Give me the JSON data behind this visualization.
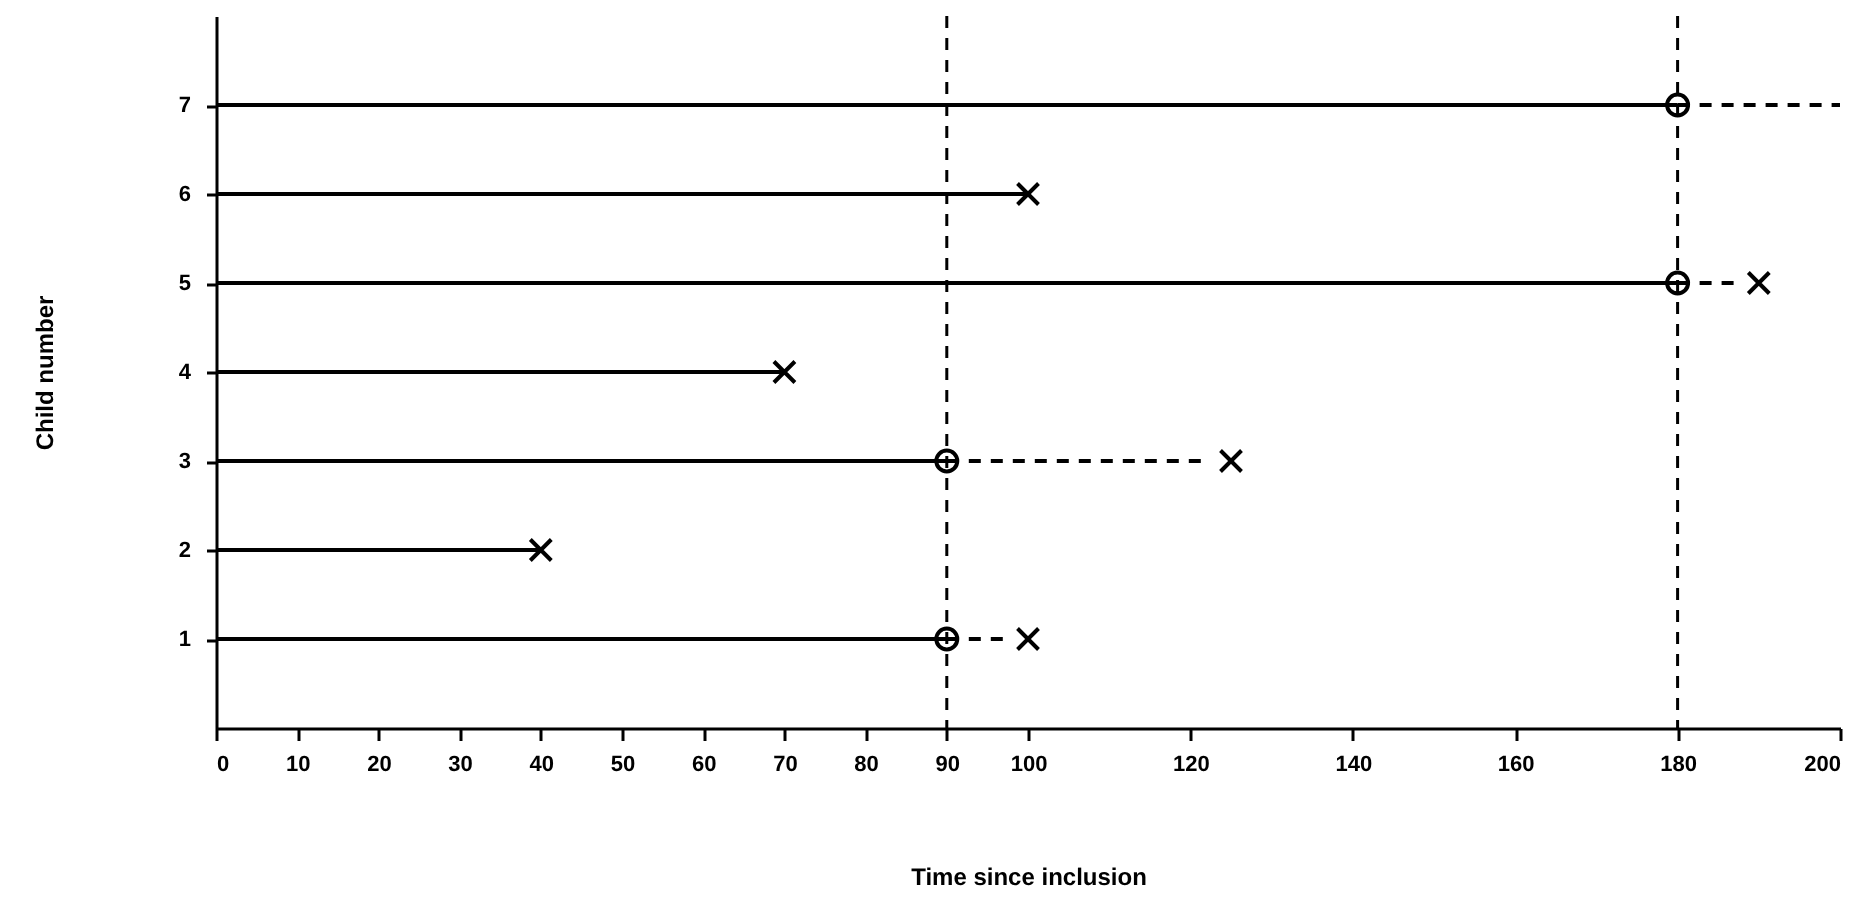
{
  "chart_data": {
    "type": "line",
    "xlabel": "Time since inclusion",
    "ylabel": "Child number",
    "xlim": [
      0,
      200
    ],
    "ylim": [
      0,
      8
    ],
    "xticks": [
      0,
      10,
      20,
      30,
      40,
      50,
      60,
      70,
      80,
      90,
      100,
      120,
      140,
      160,
      180,
      200
    ],
    "yticks": [
      1,
      2,
      3,
      4,
      5,
      6,
      7
    ],
    "grid": false,
    "series": [
      {
        "color": "#000000",
        "line_style": "solid",
        "x": [
          0,
          180
        ],
        "values": [
          7,
          7
        ]
      },
      {
        "color": "#000000",
        "line_style": "solid",
        "x": [
          0,
          100
        ],
        "values": [
          6,
          6
        ]
      },
      {
        "color": "#000000",
        "line_style": "solid",
        "x": [
          0,
          180
        ],
        "values": [
          5,
          5
        ]
      },
      {
        "color": "#000000",
        "line_style": "solid",
        "x": [
          0,
          70
        ],
        "values": [
          4,
          4
        ]
      },
      {
        "color": "#000000",
        "line_style": "solid",
        "x": [
          0,
          90
        ],
        "values": [
          3,
          3
        ]
      },
      {
        "color": "#000000",
        "line_style": "solid",
        "x": [
          0,
          40
        ],
        "values": [
          2,
          2
        ]
      },
      {
        "color": "#000000",
        "line_style": "solid",
        "x": [
          0,
          90
        ],
        "values": [
          1,
          1
        ]
      },
      {
        "color": "#000000",
        "line_style": "dashed",
        "x": [
          180,
          200
        ],
        "values": [
          7,
          7
        ]
      },
      {
        "color": "#000000",
        "line_style": "dashed",
        "x": [
          180,
          188
        ],
        "values": [
          5,
          5
        ]
      },
      {
        "color": "#000000",
        "line_style": "dashed",
        "x": [
          90,
          122
        ],
        "values": [
          3,
          3
        ]
      },
      {
        "color": "#000000",
        "line_style": "dashed",
        "x": [
          90,
          97
        ],
        "values": [
          1,
          1
        ]
      },
      {
        "type": "scatter",
        "color": "#000000",
        "marker": "circle",
        "x": [
          180,
          180,
          90,
          90
        ],
        "values": [
          7,
          5,
          3,
          1
        ]
      },
      {
        "type": "scatter",
        "color": "#000000",
        "marker": "cross",
        "x": [
          100,
          190,
          70,
          125,
          40,
          100
        ],
        "values": [
          6,
          5,
          4,
          3,
          2,
          1
        ]
      }
    ],
    "ref_lines": [
      {
        "axis": "x",
        "value": 90,
        "color": "#000000",
        "line_style": "dashed"
      },
      {
        "axis": "x",
        "value": 180,
        "color": "#000000",
        "line_style": "dashed"
      }
    ]
  }
}
